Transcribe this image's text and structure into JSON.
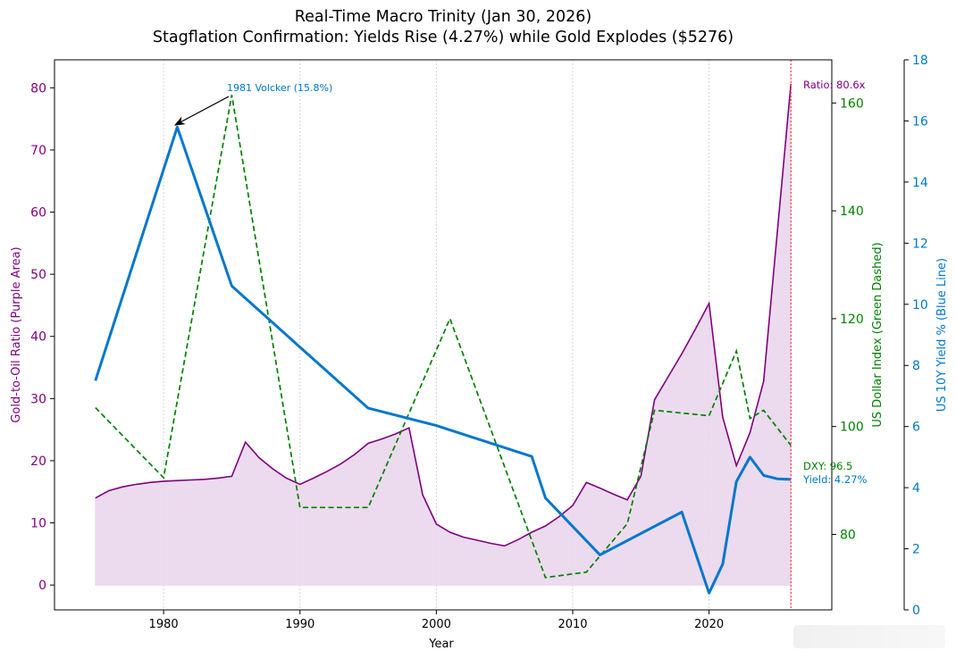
{
  "chart_data": {
    "type": "line",
    "title": "Real-Time Macro Trinity (Jan 30, 2026)",
    "subtitle": "Stagflation Confirmation: Yields Rise (4.27%) while Gold Explodes ($5276)",
    "xlabel": "Year",
    "xlim": [
      1972,
      2029
    ],
    "xticks": [
      1980,
      1990,
      2000,
      2010,
      2020
    ],
    "grid": "vertical dotted",
    "axes": {
      "left": {
        "label": "Gold-to-Oil Ratio (Purple Area)",
        "ylim": [
          -4,
          84.5
        ],
        "ticks": [
          0,
          10,
          20,
          30,
          40,
          50,
          60,
          70,
          80
        ],
        "color": "#800080"
      },
      "right1": {
        "label": "US Dollar Index (Green Dashed)",
        "ylim": [
          66,
          168
        ],
        "ticks": [
          80,
          100,
          120,
          140,
          160
        ],
        "color": "#008000"
      },
      "right2": {
        "label": "US 10Y Yield % (Blue Line)",
        "ylim": [
          0,
          18
        ],
        "ticks": [
          0,
          2,
          4,
          6,
          8,
          10,
          12,
          14,
          16,
          18
        ],
        "color": "#0077cc"
      }
    },
    "series": [
      {
        "axis": "left",
        "style": "area",
        "color": "#800080",
        "fill": "#e9d5eb",
        "points": [
          [
            1975,
            14
          ],
          [
            1976,
            15.2
          ],
          [
            1977,
            15.8
          ],
          [
            1978,
            16.2
          ],
          [
            1979,
            16.5
          ],
          [
            1980,
            16.7
          ],
          [
            1981,
            16.8
          ],
          [
            1982,
            16.9
          ],
          [
            1983,
            17
          ],
          [
            1984,
            17.2
          ],
          [
            1985,
            17.5
          ],
          [
            1986,
            23
          ],
          [
            1987,
            20.5
          ],
          [
            1988,
            18.7
          ],
          [
            1989,
            17.2
          ],
          [
            1990,
            16.2
          ],
          [
            1991,
            17.2
          ],
          [
            1992,
            18.3
          ],
          [
            1993,
            19.5
          ],
          [
            1994,
            21
          ],
          [
            1995,
            22.8
          ],
          [
            1996,
            23.5
          ],
          [
            1997,
            24.3
          ],
          [
            1998,
            25.3
          ],
          [
            1999,
            14.5
          ],
          [
            2000,
            9.8
          ],
          [
            2001,
            8.5
          ],
          [
            2002,
            7.7
          ],
          [
            2003,
            7.2
          ],
          [
            2004,
            6.7
          ],
          [
            2005,
            6.3
          ],
          [
            2006,
            7.3
          ],
          [
            2007,
            8.5
          ],
          [
            2008,
            9.5
          ],
          [
            2009,
            11
          ],
          [
            2010,
            12.8
          ],
          [
            2011,
            16.5
          ],
          [
            2012,
            15.6
          ],
          [
            2013,
            14.6
          ],
          [
            2014,
            13.7
          ],
          [
            2015,
            17.5
          ],
          [
            2016,
            29.8
          ],
          [
            2017,
            33.5
          ],
          [
            2018,
            37.2
          ],
          [
            2019,
            41.2
          ],
          [
            2020,
            45.3
          ],
          [
            2021,
            27
          ],
          [
            2022,
            19.2
          ],
          [
            2023,
            24.5
          ],
          [
            2024,
            32.8
          ],
          [
            2026,
            80.6
          ]
        ]
      },
      {
        "axis": "right1",
        "style": "dashed",
        "color": "#008000",
        "points": [
          [
            1975,
            103.5
          ],
          [
            1980,
            90.5
          ],
          [
            1985,
            161.5
          ],
          [
            1990,
            85
          ],
          [
            1995,
            85
          ],
          [
            2001,
            120
          ],
          [
            2008,
            72
          ],
          [
            2011,
            73
          ],
          [
            2014,
            82
          ],
          [
            2016,
            103
          ],
          [
            2020,
            102
          ],
          [
            2022,
            114
          ],
          [
            2023,
            101.5
          ],
          [
            2024,
            103
          ],
          [
            2026,
            96.5
          ]
        ]
      },
      {
        "axis": "right2",
        "style": "solid",
        "color": "#0077cc",
        "points": [
          [
            1975,
            7.5
          ],
          [
            1981,
            15.8
          ],
          [
            1985,
            10.6
          ],
          [
            1990,
            8.6
          ],
          [
            1995,
            6.6
          ],
          [
            2000,
            6.03
          ],
          [
            2007,
            5.02
          ],
          [
            2008,
            3.66
          ],
          [
            2012,
            1.8
          ],
          [
            2018,
            3.2
          ],
          [
            2020,
            0.55
          ],
          [
            2021,
            1.5
          ],
          [
            2022,
            4.2
          ],
          [
            2023,
            5
          ],
          [
            2024,
            4.4
          ],
          [
            2025,
            4.29
          ],
          [
            2026,
            4.27
          ]
        ]
      }
    ],
    "markers": [
      {
        "x": 2026,
        "style": "vertical dotted line",
        "color": "#ff4444"
      }
    ],
    "annotations": {
      "volcker": {
        "text": "1981 Volcker (15.8%)",
        "point": [
          1981,
          15.8
        ],
        "color": "#0077cc"
      },
      "ratio": {
        "text": "Ratio: 80.6x",
        "color": "#800080"
      },
      "dxy": {
        "text": "DXY: 96.5",
        "color": "#008000"
      },
      "yield": {
        "text": "Yield: 4.27%",
        "color": "#0077cc"
      }
    }
  }
}
